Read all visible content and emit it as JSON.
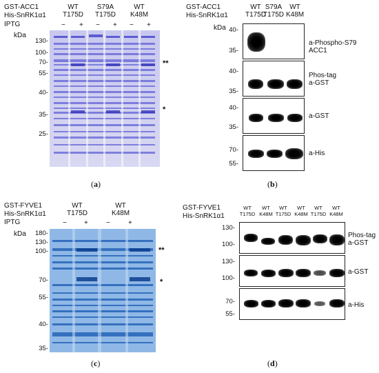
{
  "panel_a": {
    "row_labels": [
      "GST-ACC1",
      "His-SnRK1α1",
      "IPTG"
    ],
    "groups": [
      {
        "top": "WT",
        "bottom": "T175D"
      },
      {
        "top": "S79A",
        "bottom": "T175D"
      },
      {
        "top": "WT",
        "bottom": "K48M"
      }
    ],
    "iptg": [
      "−",
      "+",
      "−",
      "+",
      "−",
      "+"
    ],
    "unit": "kDa",
    "markers": [
      "130-",
      "100-",
      "70-",
      "55-",
      "40-",
      "35-",
      "25-"
    ],
    "stars": [
      "**",
      "*"
    ],
    "caption_letter": "a"
  },
  "panel_b": {
    "row_labels": [
      "GST-ACC1",
      "His-SnRK1α1"
    ],
    "groups": [
      {
        "top": "WT",
        "bottom": "T175D"
      },
      {
        "top": "S79A",
        "bottom": "T175D"
      },
      {
        "top": "WT",
        "bottom": "K48M"
      }
    ],
    "unit": "kDa",
    "blots": [
      {
        "markers": [
          "40-",
          "35-"
        ],
        "label": "a-Phospho-S79\nACC1"
      },
      {
        "markers": [
          "40-",
          "35-"
        ],
        "label": "Phos-tag\na-GST"
      },
      {
        "markers": [
          "40-",
          "35-"
        ],
        "label": "a-GST"
      },
      {
        "markers": [
          "70-",
          "55-"
        ],
        "label": "a-His"
      }
    ],
    "caption_letter": "b"
  },
  "panel_c": {
    "row_labels": [
      "GST-FYVE1",
      "His-SnRK1α1",
      "IPTG"
    ],
    "groups": [
      {
        "top": "WT",
        "bottom": "T175D"
      },
      {
        "top": "WT",
        "bottom": "K48M"
      }
    ],
    "iptg": [
      "−",
      "+",
      "−",
      "+"
    ],
    "unit": "kDa",
    "markers": [
      "180-",
      "130-",
      "100-",
      "70-",
      "55-",
      "40-",
      "35-"
    ],
    "stars": [
      "**",
      "*"
    ],
    "caption_letter": "c"
  },
  "panel_d": {
    "row_labels": [
      "GST-FYVE1",
      "His-SnRK1α1"
    ],
    "lanes": [
      {
        "top": "WT",
        "bottom": "T175D"
      },
      {
        "top": "WT",
        "bottom": "K48M"
      },
      {
        "top": "WT",
        "bottom": "T175D"
      },
      {
        "top": "WT",
        "bottom": "K48M"
      },
      {
        "top": "WT",
        "bottom": "T175D"
      },
      {
        "top": "WT",
        "bottom": "K48M"
      }
    ],
    "blots": [
      {
        "markers": [
          "130-",
          "100-"
        ],
        "label": "Phos-tag\na-GST"
      },
      {
        "markers": [
          "130-",
          "100-"
        ],
        "label": "a-GST"
      },
      {
        "markers": [
          "70-",
          "55-"
        ],
        "label": "a-His"
      }
    ],
    "caption_letter": "d"
  }
}
